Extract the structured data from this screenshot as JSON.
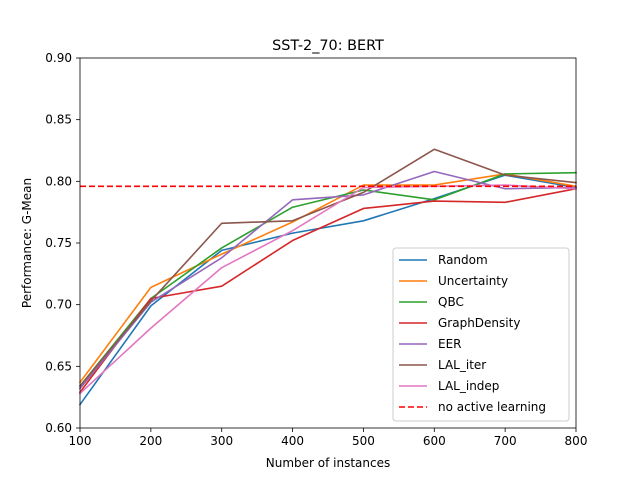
{
  "chart_data": {
    "type": "line",
    "title": "SST-2_70: BERT",
    "xlabel": "Number of instances",
    "ylabel": "Performance: G-Mean",
    "xlim": [
      100,
      800
    ],
    "ylim": [
      0.6,
      0.9
    ],
    "xticks": [
      100,
      200,
      300,
      400,
      500,
      600,
      700,
      800
    ],
    "xtick_labels": [
      "100",
      "200",
      "300",
      "400",
      "500",
      "600",
      "700",
      "800"
    ],
    "yticks": [
      0.6,
      0.65,
      0.7,
      0.75,
      0.8,
      0.85,
      0.9
    ],
    "ytick_labels": [
      "0.60",
      "0.65",
      "0.70",
      "0.75",
      "0.80",
      "0.85",
      "0.90"
    ],
    "grid": false,
    "legend_position": "lower-right",
    "x": [
      100,
      200,
      300,
      400,
      500,
      600,
      700,
      800
    ],
    "series": [
      {
        "name": "Random",
        "color": "#1f77b4",
        "style": "solid",
        "values": [
          0.619,
          0.699,
          0.744,
          0.758,
          0.768,
          0.786,
          0.805,
          0.795
        ]
      },
      {
        "name": "Uncertainty",
        "color": "#ff7f0e",
        "style": "solid",
        "values": [
          0.637,
          0.714,
          0.741,
          0.767,
          0.797,
          0.797,
          0.806,
          0.796
        ]
      },
      {
        "name": "QBC",
        "color": "#2ca02c",
        "style": "solid",
        "values": [
          0.634,
          0.705,
          0.746,
          0.779,
          0.793,
          0.785,
          0.806,
          0.807
        ]
      },
      {
        "name": "GraphDensity",
        "color": "#d62728",
        "style": "solid",
        "values": [
          0.629,
          0.705,
          0.715,
          0.752,
          0.778,
          0.784,
          0.783,
          0.794
        ]
      },
      {
        "name": "EER",
        "color": "#9467bd",
        "style": "solid",
        "values": [
          0.632,
          0.702,
          0.738,
          0.785,
          0.789,
          0.808,
          0.794,
          0.795
        ]
      },
      {
        "name": "LAL_iter",
        "color": "#8c564b",
        "style": "solid",
        "values": [
          0.634,
          0.703,
          0.766,
          0.768,
          0.791,
          0.826,
          0.805,
          0.799
        ]
      },
      {
        "name": "LAL_indep",
        "color": "#e377c2",
        "style": "solid",
        "values": [
          0.628,
          0.681,
          0.73,
          0.76,
          0.795,
          0.796,
          0.797,
          0.794
        ]
      },
      {
        "name": "no active learning",
        "color": "#ff0000",
        "style": "dashed",
        "values": [
          0.796,
          0.796,
          0.796,
          0.796,
          0.796,
          0.796,
          0.796,
          0.796
        ]
      }
    ]
  }
}
